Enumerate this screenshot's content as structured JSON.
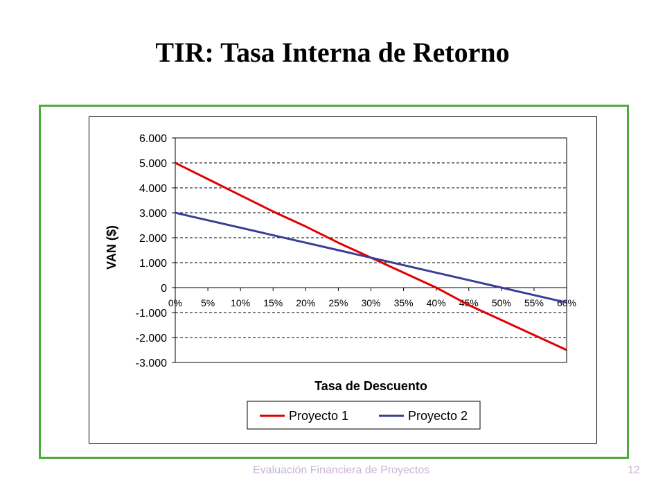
{
  "slide": {
    "title": "TIR: Tasa Interna de Retorno",
    "footer": "Evaluación Financiera de Proyectos",
    "page_number": "12"
  },
  "colors": {
    "frame": "#4daa3c",
    "series_1": "#e00000",
    "series_2": "#3a3d94",
    "footer_text": "#c8b4d8"
  },
  "chart_data": {
    "type": "line",
    "title": "",
    "xlabel": "Tasa de Descuento",
    "ylabel": "VAN ($)",
    "x_tick_labels": [
      "0%",
      "5%",
      "10%",
      "15%",
      "20%",
      "25%",
      "30%",
      "35%",
      "40%",
      "45%",
      "50%",
      "55%",
      "60%"
    ],
    "x_values": [
      0,
      5,
      10,
      15,
      20,
      25,
      30,
      35,
      40,
      45,
      50,
      55,
      60
    ],
    "y_tick_values": [
      6000,
      5000,
      4000,
      3000,
      2000,
      1000,
      0,
      -1000,
      -2000,
      -3000
    ],
    "y_tick_labels": [
      "6.000",
      "5.000",
      "4.000",
      "3.000",
      "2.000",
      "1.000",
      "0",
      "-1.000",
      "-2.000",
      "-3.000"
    ],
    "xlim": [
      0,
      60
    ],
    "ylim": [
      -3000,
      6000
    ],
    "grid": "horizontal dashed",
    "legend": "bottom",
    "series": [
      {
        "name": "Proyecto 1",
        "color": "#e00000",
        "x": [
          0,
          5,
          10,
          15,
          20,
          25,
          30,
          35,
          40,
          45,
          50,
          55,
          60
        ],
        "values": [
          5000,
          4350,
          3700,
          3050,
          2450,
          1800,
          1200,
          600,
          0,
          -700,
          -1300,
          -1900,
          -2500
        ]
      },
      {
        "name": "Proyecto 2",
        "color": "#3a3d94",
        "x": [
          0,
          5,
          10,
          15,
          20,
          25,
          30,
          35,
          40,
          45,
          50,
          55,
          60
        ],
        "values": [
          3000,
          2700,
          2400,
          2100,
          1800,
          1500,
          1200,
          900,
          600,
          300,
          0,
          -300,
          -600
        ]
      }
    ]
  }
}
